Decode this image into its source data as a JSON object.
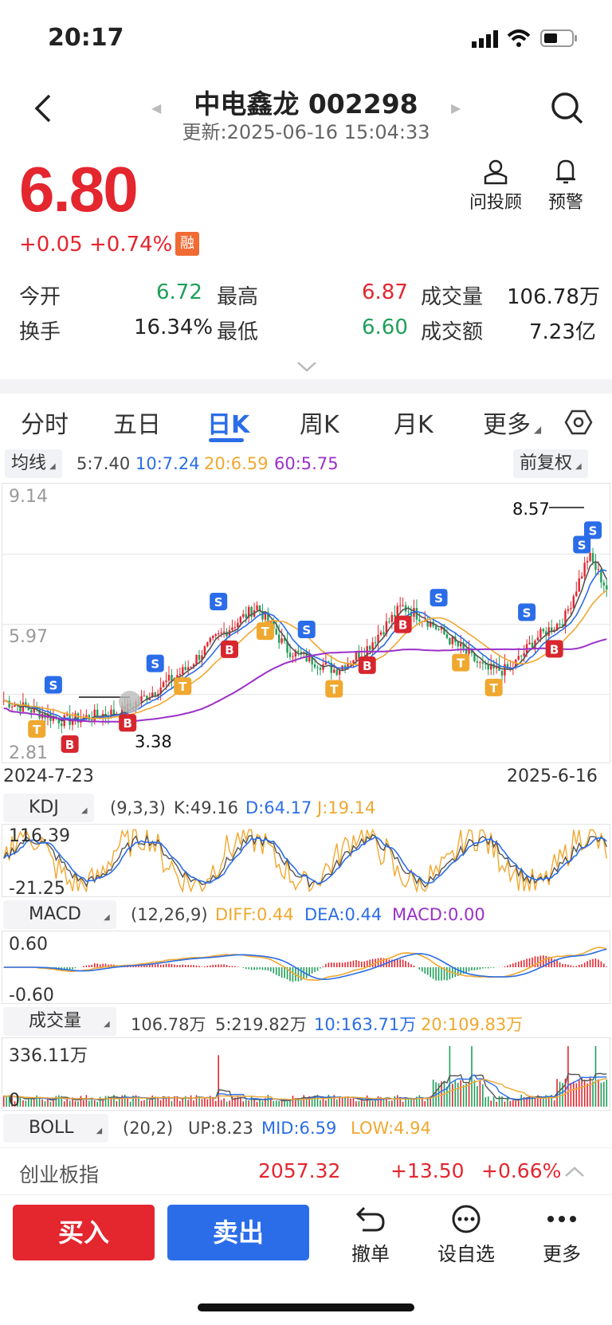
{
  "status_bar": {
    "time": "20:17"
  },
  "header": {
    "stock_name_code": "中电鑫龙 002298",
    "update_time": "更新:2025-06-16 15:04:33"
  },
  "quote": {
    "price": "6.80",
    "change": "+0.05",
    "change_pct": "+0.74%",
    "margin_badge": "融",
    "tools": [
      {
        "label": "问投顾"
      },
      {
        "label": "预警"
      }
    ]
  },
  "stats": {
    "open_label": "今开",
    "open": "6.72",
    "high_label": "最高",
    "high": "6.87",
    "volume_label": "成交量",
    "volume": "106.78万",
    "turnover_label": "换手",
    "turnover": "16.34%",
    "low_label": "最低",
    "low": "6.60",
    "amount_label": "成交额",
    "amount": "7.23亿"
  },
  "tabs": [
    "分时",
    "五日",
    "日K",
    "周K",
    "月K",
    "更多"
  ],
  "active_tab": "日K",
  "ma_bar": {
    "selector": "均线",
    "ma5": "5:7.40",
    "ma10": "10:7.24",
    "ma20": "20:6.59",
    "ma60": "60:5.75",
    "adjust": "前复权"
  },
  "colors": {
    "up": "#e4262f",
    "down": "#1f9f5a",
    "ma5": "#555555",
    "ma10": "#2b6de8",
    "ma20": "#f0a830",
    "ma60": "#9b30c9",
    "accent": "#2b6de8"
  },
  "chart_data": [
    {
      "type": "candlestick",
      "y_axis": {
        "top": "9.14",
        "mid": "5.97",
        "bottom": "2.81"
      },
      "x_axis": {
        "start": "2024-7-23",
        "end": "2025-6-16"
      },
      "annotations": {
        "max": "8.57",
        "min": "3.38"
      },
      "markers": {
        "buy": "B",
        "sell": "S",
        "t": "T"
      }
    },
    {
      "type": "line",
      "indicator": "KDJ",
      "params": "(9,3,3)",
      "k": "K:49.16",
      "d": "D:64.17",
      "j": "J:19.14",
      "y_axis": {
        "top": "116.39",
        "bottom": "-21.25"
      }
    },
    {
      "type": "bar",
      "indicator": "MACD",
      "params": "(12,26,9)",
      "diff": "DIFF:0.44",
      "dea": "DEA:0.44",
      "macd": "MACD:0.00",
      "y_axis": {
        "top": "0.60",
        "bottom": "-0.60"
      }
    },
    {
      "type": "bar",
      "indicator": "成交量",
      "current": "106.78万",
      "ma5": "5:219.82万",
      "ma10": "10:163.71万",
      "ma20": "20:109.83万",
      "y_axis": {
        "top": "336.11万",
        "bottom": "0"
      }
    },
    {
      "type": "line",
      "indicator": "BOLL",
      "params": "(20,2)",
      "up": "UP:8.23",
      "mid": "MID:6.59",
      "low": "LOW:4.94"
    }
  ],
  "index_bar": {
    "name": "创业板指",
    "value": "2057.32",
    "change": "+13.50",
    "pct": "+0.66%"
  },
  "actions": {
    "buy": "买入",
    "sell": "卖出",
    "cancel": "撤单",
    "watchlist": "设自选",
    "more": "更多"
  }
}
